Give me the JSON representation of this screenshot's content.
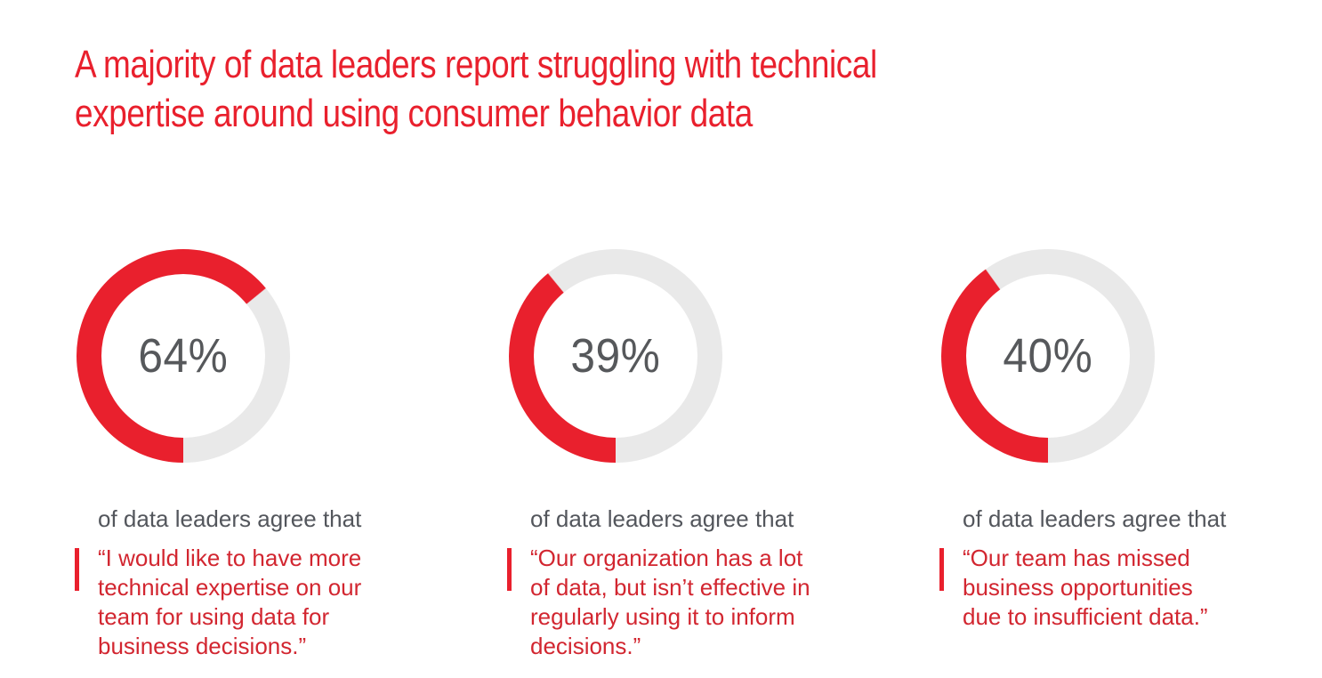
{
  "colors": {
    "accent_red": "#e9202d",
    "quote_red": "#d22630",
    "ring_gray": "#e9e9e9",
    "lead_gray": "#53565c",
    "percent_gray": "#56585b"
  },
  "title": {
    "text": "A majority of data leaders report struggling with technical expertise around using consumer behavior data",
    "lines": [
      "A majority of data leaders report struggling with technical",
      "expertise around using consumer behavior data"
    ]
  },
  "chart_data": {
    "type": "pie",
    "variant": "donut",
    "title": "A majority of data leaders report struggling with technical expertise around using consumer behavior data",
    "unit": "%",
    "legend_position": "none",
    "arc_start": "bottom, sweeping clockwise through left side",
    "series": [
      {
        "name": "“I would like to have more technical expertise on our team for using data for business decisions.”",
        "value": 64,
        "remainder": 36
      },
      {
        "name": "“Our organization has a lot of data, but isn’t effective in regularly using it to inform decisions.”",
        "value": 39,
        "remainder": 61
      },
      {
        "name": "“Our team has missed business opportunities due to insufficient data.”",
        "value": 40,
        "remainder": 60
      }
    ],
    "colors": {
      "filled": "#e9202d",
      "remainder": "#e9e9e9"
    }
  },
  "stats": [
    {
      "value": 64,
      "percent_label": "64%",
      "lead": "of data leaders agree that",
      "quote": "“I would like to have more technical expertise on our team for using data for business decisions.”",
      "quote_lines": [
        "“I would like to have more",
        "technical expertise on our",
        "team for using data for",
        "business decisions.”"
      ]
    },
    {
      "value": 39,
      "percent_label": "39%",
      "lead": "of data leaders agree that",
      "quote": "“Our organization has a lot of data, but isn’t effective in regularly using it to inform decisions.”",
      "quote_lines": [
        "“Our organization has a lot",
        "of data, but isn’t effective in",
        "regularly using it to inform",
        "decisions.”"
      ]
    },
    {
      "value": 40,
      "percent_label": "40%",
      "lead": "of data leaders agree that",
      "quote": "“Our team has missed business opportunities due to insufficient data.”",
      "quote_lines": [
        "“Our team has missed",
        "business opportunities",
        "due to insufficient data.”"
      ]
    }
  ]
}
